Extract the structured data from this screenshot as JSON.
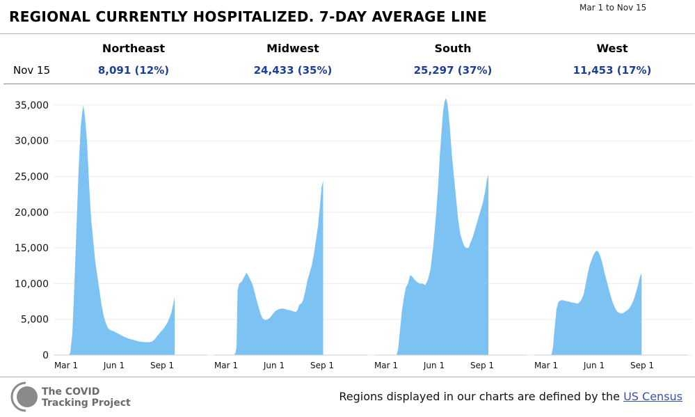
{
  "title": "REGIONAL CURRENTLY HOSPITALIZED. 7-DAY AVERAGE LINE",
  "date_range": "Mar 1 to Nov 15",
  "summary": {
    "date_label": "Nov 15",
    "regions": [
      {
        "name": "Northeast",
        "value": "8,091 (12%)"
      },
      {
        "name": "Midwest",
        "value": "24,433 (35%)"
      },
      {
        "name": "South",
        "value": "25,297 (37%)"
      },
      {
        "name": "West",
        "value": "11,453 (17%)"
      }
    ]
  },
  "footer": {
    "logo_line1": "The COVID",
    "logo_line2": "Tracking Project",
    "note": "Regions displayed in our charts are defined by the",
    "link_text": "US Census"
  },
  "colors": {
    "bar": "#7cc3f3",
    "value_text": "#1b3f94",
    "grid": "#ececec"
  },
  "chart_data": {
    "type": "area",
    "y_ticks": [
      0,
      5000,
      10000,
      15000,
      20000,
      25000,
      30000,
      35000
    ],
    "y_tick_labels": [
      "0",
      "5,000",
      "10,000",
      "15,000",
      "20,000",
      "25,000",
      "30,000",
      "35,000"
    ],
    "ylim": [
      0,
      36000
    ],
    "x_tick_labels": [
      "Mar 1",
      "Jun 1",
      "Sep 1"
    ],
    "x_tick_days": [
      0,
      92,
      184
    ],
    "x_range_days": [
      0,
      259
    ],
    "grid": true,
    "series": [
      {
        "name": "Northeast",
        "points": [
          [
            0,
            0
          ],
          [
            5,
            0
          ],
          [
            8,
            300
          ],
          [
            12,
            3000
          ],
          [
            16,
            10000
          ],
          [
            20,
            18000
          ],
          [
            24,
            26000
          ],
          [
            28,
            32000
          ],
          [
            31,
            34000
          ],
          [
            33,
            35000
          ],
          [
            36,
            33500
          ],
          [
            40,
            30000
          ],
          [
            44,
            24000
          ],
          [
            48,
            19000
          ],
          [
            52,
            16000
          ],
          [
            56,
            13000
          ],
          [
            60,
            11000
          ],
          [
            64,
            9000
          ],
          [
            68,
            7000
          ],
          [
            72,
            5500
          ],
          [
            76,
            4500
          ],
          [
            80,
            3800
          ],
          [
            85,
            3500
          ],
          [
            92,
            3300
          ],
          [
            100,
            3000
          ],
          [
            110,
            2600
          ],
          [
            120,
            2300
          ],
          [
            130,
            2100
          ],
          [
            140,
            1900
          ],
          [
            150,
            1800
          ],
          [
            160,
            1800
          ],
          [
            165,
            1900
          ],
          [
            170,
            2200
          ],
          [
            176,
            2800
          ],
          [
            182,
            3300
          ],
          [
            188,
            3800
          ],
          [
            194,
            4500
          ],
          [
            198,
            5200
          ],
          [
            202,
            6000
          ],
          [
            205,
            7000
          ],
          [
            208,
            8091
          ]
        ]
      },
      {
        "name": "Midwest",
        "points": [
          [
            0,
            0
          ],
          [
            15,
            0
          ],
          [
            18,
            300
          ],
          [
            20,
            1200
          ],
          [
            22,
            9000
          ],
          [
            25,
            10000
          ],
          [
            30,
            10300
          ],
          [
            35,
            11000
          ],
          [
            39,
            11500
          ],
          [
            42,
            11200
          ],
          [
            46,
            10600
          ],
          [
            50,
            10000
          ],
          [
            54,
            9000
          ],
          [
            58,
            7800
          ],
          [
            62,
            6800
          ],
          [
            66,
            5800
          ],
          [
            70,
            5100
          ],
          [
            75,
            4900
          ],
          [
            80,
            5000
          ],
          [
            85,
            5300
          ],
          [
            90,
            5800
          ],
          [
            95,
            6200
          ],
          [
            100,
            6400
          ],
          [
            105,
            6500
          ],
          [
            110,
            6500
          ],
          [
            115,
            6400
          ],
          [
            120,
            6300
          ],
          [
            125,
            6200
          ],
          [
            130,
            6100
          ],
          [
            133,
            6000
          ],
          [
            137,
            6300
          ],
          [
            140,
            7000
          ],
          [
            145,
            7300
          ],
          [
            148,
            7800
          ],
          [
            152,
            9000
          ],
          [
            156,
            10500
          ],
          [
            160,
            11500
          ],
          [
            164,
            12500
          ],
          [
            168,
            14000
          ],
          [
            172,
            16000
          ],
          [
            176,
            18000
          ],
          [
            180,
            21000
          ],
          [
            183,
            23500
          ],
          [
            186,
            24433
          ]
        ]
      },
      {
        "name": "South",
        "points": [
          [
            0,
            0
          ],
          [
            20,
            0
          ],
          [
            23,
            800
          ],
          [
            26,
            3000
          ],
          [
            30,
            6000
          ],
          [
            34,
            8000
          ],
          [
            38,
            9500
          ],
          [
            42,
            10000
          ],
          [
            46,
            11200
          ],
          [
            50,
            11000
          ],
          [
            55,
            10500
          ],
          [
            60,
            10200
          ],
          [
            65,
            10000
          ],
          [
            70,
            10000
          ],
          [
            75,
            9800
          ],
          [
            80,
            10500
          ],
          [
            85,
            12000
          ],
          [
            90,
            15000
          ],
          [
            95,
            19000
          ],
          [
            100,
            24000
          ],
          [
            103,
            28000
          ],
          [
            106,
            31000
          ],
          [
            109,
            34000
          ],
          [
            112,
            35500
          ],
          [
            115,
            36000
          ],
          [
            118,
            35000
          ],
          [
            122,
            32000
          ],
          [
            126,
            28000
          ],
          [
            130,
            25000
          ],
          [
            134,
            22000
          ],
          [
            138,
            19000
          ],
          [
            142,
            17000
          ],
          [
            146,
            16000
          ],
          [
            150,
            15200
          ],
          [
            154,
            15000
          ],
          [
            158,
            15000
          ],
          [
            162,
            15800
          ],
          [
            166,
            16500
          ],
          [
            170,
            17500
          ],
          [
            174,
            18500
          ],
          [
            178,
            19500
          ],
          [
            182,
            20500
          ],
          [
            186,
            21500
          ],
          [
            190,
            23000
          ],
          [
            193,
            24500
          ],
          [
            196,
            25297
          ]
        ]
      },
      {
        "name": "West",
        "points": [
          [
            0,
            0
          ],
          [
            10,
            0
          ],
          [
            13,
            1000
          ],
          [
            16,
            3500
          ],
          [
            20,
            6500
          ],
          [
            24,
            7500
          ],
          [
            30,
            7700
          ],
          [
            36,
            7600
          ],
          [
            42,
            7500
          ],
          [
            48,
            7400
          ],
          [
            54,
            7300
          ],
          [
            60,
            7200
          ],
          [
            64,
            7400
          ],
          [
            68,
            7800
          ],
          [
            72,
            8500
          ],
          [
            76,
            10000
          ],
          [
            80,
            11500
          ],
          [
            84,
            12700
          ],
          [
            88,
            13500
          ],
          [
            92,
            14200
          ],
          [
            96,
            14600
          ],
          [
            100,
            14500
          ],
          [
            104,
            13800
          ],
          [
            108,
            12800
          ],
          [
            112,
            11500
          ],
          [
            116,
            10400
          ],
          [
            120,
            9300
          ],
          [
            124,
            8200
          ],
          [
            128,
            7300
          ],
          [
            132,
            6600
          ],
          [
            136,
            6100
          ],
          [
            140,
            5900
          ],
          [
            144,
            5800
          ],
          [
            148,
            5900
          ],
          [
            152,
            6100
          ],
          [
            156,
            6300
          ],
          [
            160,
            6600
          ],
          [
            164,
            7100
          ],
          [
            168,
            7800
          ],
          [
            172,
            8700
          ],
          [
            176,
            9800
          ],
          [
            180,
            11000
          ],
          [
            183,
            11453
          ]
        ]
      }
    ]
  }
}
